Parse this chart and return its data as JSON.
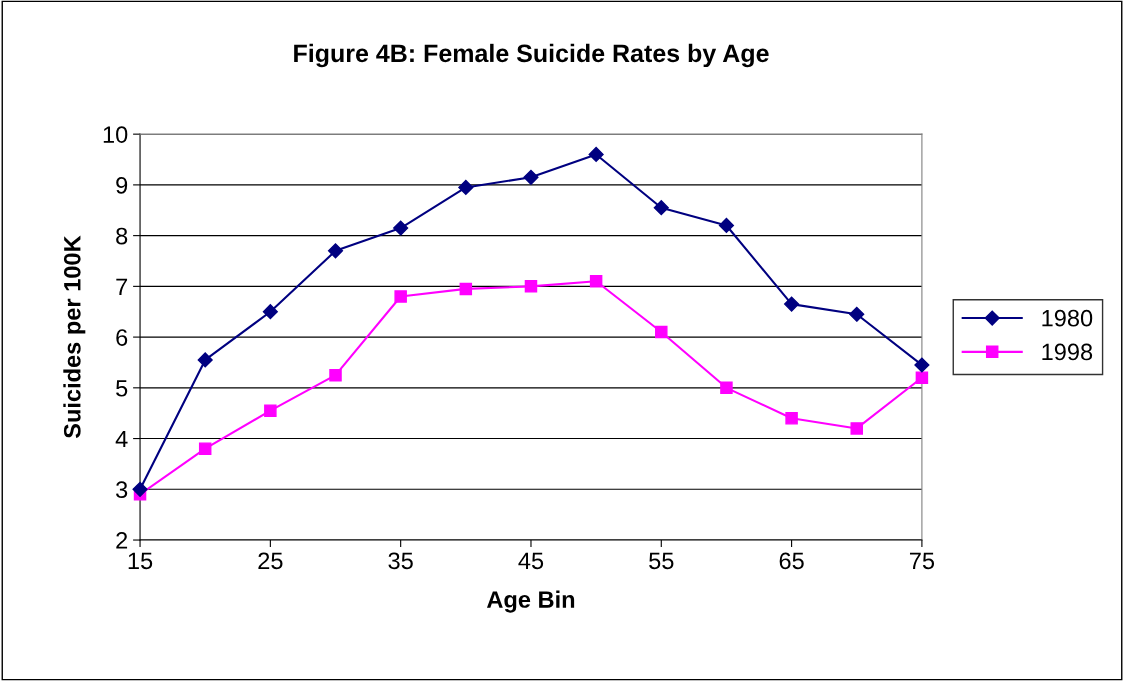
{
  "chart_data": {
    "type": "line",
    "title": "Figure 4B: Female Suicide Rates by Age",
    "xlabel": "Age Bin",
    "ylabel": "Suicides per 100K",
    "x": [
      15,
      20,
      25,
      30,
      35,
      40,
      45,
      50,
      55,
      60,
      65,
      70,
      75
    ],
    "series": [
      {
        "name": "1980",
        "color": "#000080",
        "marker": "diamond",
        "values": [
          3.0,
          5.55,
          6.5,
          7.7,
          8.15,
          8.95,
          9.15,
          9.6,
          8.55,
          8.2,
          6.65,
          6.45,
          5.45
        ]
      },
      {
        "name": "1998",
        "color": "#ff00ff",
        "marker": "square",
        "values": [
          2.9,
          3.8,
          4.55,
          5.25,
          6.8,
          6.95,
          7.0,
          7.1,
          6.1,
          5.0,
          4.4,
          4.2,
          5.2
        ]
      }
    ],
    "xlim": [
      15,
      75
    ],
    "xticks": [
      15,
      25,
      35,
      45,
      55,
      65,
      75
    ],
    "ylim": [
      2,
      10
    ],
    "yticks": [
      2,
      3,
      4,
      5,
      6,
      7,
      8,
      9,
      10
    ],
    "grid": "y",
    "legend": "right",
    "line_style": "solid"
  }
}
